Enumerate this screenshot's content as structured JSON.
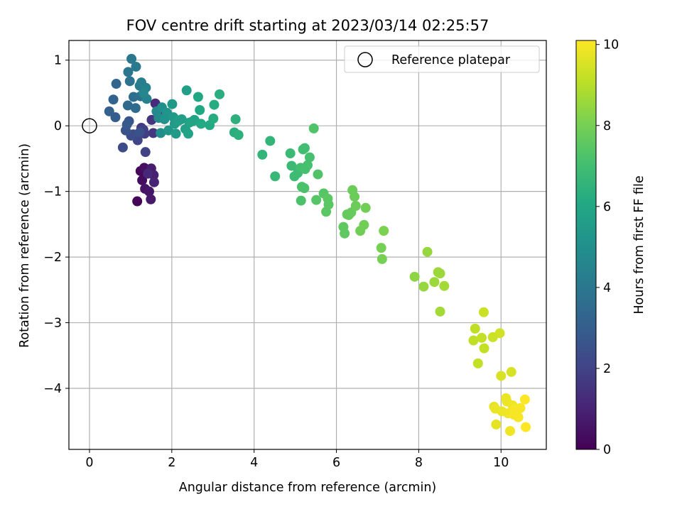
{
  "chart_data": {
    "type": "scatter",
    "title": "FOV centre drift starting at 2023/03/14 02:25:57",
    "xlabel": "Angular distance from reference (arcmin)",
    "ylabel": "Rotation from reference (arcmin)",
    "xlim": [
      -0.5,
      11.1
    ],
    "ylim": [
      -4.93,
      1.3
    ],
    "xticks": [
      0,
      2,
      4,
      6,
      8,
      10
    ],
    "yticks": [
      -4,
      -3,
      -2,
      -1,
      0,
      1
    ],
    "grid": true,
    "legend": {
      "placement": "top-right",
      "entries": [
        "Reference platepar"
      ]
    },
    "reference_point": {
      "x": 0,
      "y": 0,
      "label": "Reference platepar"
    },
    "colorbar": {
      "label": "Hours from first FF file",
      "min": 0,
      "max": 10.1,
      "ticks": [
        0,
        2,
        4,
        6,
        8,
        10
      ],
      "colormap": "viridis"
    },
    "points": [
      {
        "x": 1.16,
        "y": -1.15,
        "t": 0.1
      },
      {
        "x": 1.24,
        "y": -0.69,
        "t": 0.2
      },
      {
        "x": 1.28,
        "y": -0.83,
        "t": 0.3
      },
      {
        "x": 1.33,
        "y": -0.64,
        "t": 0.4
      },
      {
        "x": 1.35,
        "y": -0.96,
        "t": 0.5
      },
      {
        "x": 1.45,
        "y": -1.0,
        "t": 0.6
      },
      {
        "x": 1.49,
        "y": -1.12,
        "t": 0.7
      },
      {
        "x": 1.5,
        "y": -0.65,
        "t": 0.8
      },
      {
        "x": 1.56,
        "y": -0.75,
        "t": 0.9
      },
      {
        "x": 1.57,
        "y": -0.86,
        "t": 1.0
      },
      {
        "x": 1.42,
        "y": -0.73,
        "t": 1.1
      },
      {
        "x": 1.6,
        "y": 0.34,
        "t": 1.2
      },
      {
        "x": 1.66,
        "y": 0.21,
        "t": 1.3
      },
      {
        "x": 1.51,
        "y": 0.09,
        "t": 1.5
      },
      {
        "x": 1.55,
        "y": -0.11,
        "t": 1.6
      },
      {
        "x": 1.26,
        "y": -0.03,
        "t": 1.7
      },
      {
        "x": 1.34,
        "y": -0.12,
        "t": 1.8
      },
      {
        "x": 1.31,
        "y": -0.06,
        "t": 1.9
      },
      {
        "x": 1.36,
        "y": -0.4,
        "t": 2.0
      },
      {
        "x": 1.17,
        "y": -0.22,
        "t": 2.1
      },
      {
        "x": 1.06,
        "y": -0.13,
        "t": 2.2
      },
      {
        "x": 0.81,
        "y": -0.33,
        "t": 2.3
      },
      {
        "x": 1.01,
        "y": -0.15,
        "t": 2.4
      },
      {
        "x": 1.22,
        "y": -0.1,
        "t": 2.5
      },
      {
        "x": 0.88,
        "y": -0.07,
        "t": 2.6
      },
      {
        "x": 0.96,
        "y": 0.07,
        "t": 2.7
      },
      {
        "x": 0.91,
        "y": 0.02,
        "t": 2.8
      },
      {
        "x": 0.63,
        "y": 0.13,
        "t": 3.0
      },
      {
        "x": 0.48,
        "y": 0.22,
        "t": 3.1
      },
      {
        "x": 0.58,
        "y": 0.4,
        "t": 3.2
      },
      {
        "x": 0.65,
        "y": 0.64,
        "t": 3.3
      },
      {
        "x": 0.93,
        "y": 0.31,
        "t": 3.4
      },
      {
        "x": 1.12,
        "y": 0.27,
        "t": 3.5
      },
      {
        "x": 1.07,
        "y": 0.44,
        "t": 3.6
      },
      {
        "x": 1.24,
        "y": 0.45,
        "t": 3.7
      },
      {
        "x": 0.98,
        "y": 0.68,
        "t": 3.8
      },
      {
        "x": 0.94,
        "y": 0.82,
        "t": 3.9
      },
      {
        "x": 1.02,
        "y": 1.02,
        "t": 4.0
      },
      {
        "x": 1.13,
        "y": 0.9,
        "t": 4.1
      },
      {
        "x": 1.22,
        "y": 0.61,
        "t": 4.2
      },
      {
        "x": 1.26,
        "y": 0.66,
        "t": 4.3
      },
      {
        "x": 1.37,
        "y": 0.58,
        "t": 4.4
      },
      {
        "x": 1.39,
        "y": 0.41,
        "t": 4.5
      },
      {
        "x": 1.31,
        "y": 0.5,
        "t": 4.6
      },
      {
        "x": 1.63,
        "y": 0.22,
        "t": 4.7
      },
      {
        "x": 1.68,
        "y": 0.12,
        "t": 4.8
      },
      {
        "x": 1.73,
        "y": -0.11,
        "t": 4.9
      },
      {
        "x": 1.76,
        "y": 0.28,
        "t": 5.0
      },
      {
        "x": 1.82,
        "y": 0.1,
        "t": 5.1
      },
      {
        "x": 1.88,
        "y": 0.2,
        "t": 5.2
      },
      {
        "x": 1.92,
        "y": -0.07,
        "t": 5.3
      },
      {
        "x": 2.01,
        "y": 0.33,
        "t": 5.4
      },
      {
        "x": 2.04,
        "y": 0.13,
        "t": 5.4
      },
      {
        "x": 2.07,
        "y": 0.03,
        "t": 5.5
      },
      {
        "x": 2.1,
        "y": -0.12,
        "t": 5.5
      },
      {
        "x": 2.17,
        "y": 0.08,
        "t": 5.6
      },
      {
        "x": 2.24,
        "y": 0.1,
        "t": 5.6
      },
      {
        "x": 2.33,
        "y": -0.05,
        "t": 5.7
      },
      {
        "x": 2.36,
        "y": 0.54,
        "t": 5.7
      },
      {
        "x": 2.4,
        "y": -0.12,
        "t": 5.8
      },
      {
        "x": 2.43,
        "y": 0.05,
        "t": 5.8
      },
      {
        "x": 2.51,
        "y": 0.07,
        "t": 5.9
      },
      {
        "x": 2.55,
        "y": 0.09,
        "t": 5.9
      },
      {
        "x": 2.64,
        "y": 0.44,
        "t": 6.0
      },
      {
        "x": 2.68,
        "y": 0.24,
        "t": 6.0
      },
      {
        "x": 2.71,
        "y": 0.03,
        "t": 6.1
      },
      {
        "x": 2.92,
        "y": 0.01,
        "t": 6.1
      },
      {
        "x": 3.03,
        "y": 0.32,
        "t": 6.2
      },
      {
        "x": 3.01,
        "y": 0.11,
        "t": 6.2
      },
      {
        "x": 3.16,
        "y": 0.48,
        "t": 6.3
      },
      {
        "x": 3.52,
        "y": -0.1,
        "t": 6.3
      },
      {
        "x": 3.55,
        "y": 0.1,
        "t": 6.4
      },
      {
        "x": 3.62,
        "y": -0.14,
        "t": 6.4
      },
      {
        "x": 4.2,
        "y": -0.44,
        "t": 6.6
      },
      {
        "x": 4.39,
        "y": -0.23,
        "t": 6.6
      },
      {
        "x": 4.51,
        "y": -0.77,
        "t": 6.7
      },
      {
        "x": 4.88,
        "y": -0.42,
        "t": 6.8
      },
      {
        "x": 4.91,
        "y": -0.61,
        "t": 6.8
      },
      {
        "x": 4.98,
        "y": -0.77,
        "t": 6.9
      },
      {
        "x": 5.06,
        "y": -0.72,
        "t": 6.9
      },
      {
        "x": 5.13,
        "y": -0.64,
        "t": 7.0
      },
      {
        "x": 5.19,
        "y": -0.36,
        "t": 7.0
      },
      {
        "x": 5.23,
        "y": -0.34,
        "t": 7.0
      },
      {
        "x": 5.24,
        "y": -0.66,
        "t": 7.1
      },
      {
        "x": 5.3,
        "y": -0.6,
        "t": 7.1
      },
      {
        "x": 5.35,
        "y": -0.48,
        "t": 7.1
      },
      {
        "x": 5.16,
        "y": -0.93,
        "t": 7.2
      },
      {
        "x": 5.22,
        "y": -0.95,
        "t": 7.2
      },
      {
        "x": 5.14,
        "y": -1.14,
        "t": 7.2
      },
      {
        "x": 5.45,
        "y": -0.04,
        "t": 7.3
      },
      {
        "x": 5.55,
        "y": -0.74,
        "t": 7.3
      },
      {
        "x": 5.51,
        "y": -1.13,
        "t": 7.4
      },
      {
        "x": 5.69,
        "y": -1.03,
        "t": 7.4
      },
      {
        "x": 5.79,
        "y": -1.11,
        "t": 7.5
      },
      {
        "x": 5.81,
        "y": -1.2,
        "t": 7.5
      },
      {
        "x": 5.75,
        "y": -1.31,
        "t": 7.5
      },
      {
        "x": 6.17,
        "y": -1.54,
        "t": 7.6
      },
      {
        "x": 6.2,
        "y": -1.64,
        "t": 7.6
      },
      {
        "x": 6.26,
        "y": -1.35,
        "t": 7.7
      },
      {
        "x": 6.36,
        "y": -1.32,
        "t": 7.7
      },
      {
        "x": 6.3,
        "y": -1.36,
        "t": 7.7
      },
      {
        "x": 6.39,
        "y": -0.98,
        "t": 7.8
      },
      {
        "x": 6.44,
        "y": -1.08,
        "t": 7.8
      },
      {
        "x": 6.47,
        "y": -1.22,
        "t": 7.8
      },
      {
        "x": 6.58,
        "y": -1.6,
        "t": 7.9
      },
      {
        "x": 6.67,
        "y": -1.51,
        "t": 7.9
      },
      {
        "x": 6.71,
        "y": -1.25,
        "t": 7.9
      },
      {
        "x": 7.09,
        "y": -1.86,
        "t": 8.0
      },
      {
        "x": 7.11,
        "y": -2.03,
        "t": 8.0
      },
      {
        "x": 7.15,
        "y": -1.6,
        "t": 8.1
      },
      {
        "x": 7.9,
        "y": -2.3,
        "t": 8.4
      },
      {
        "x": 8.12,
        "y": -2.45,
        "t": 8.5
      },
      {
        "x": 8.21,
        "y": -1.92,
        "t": 8.5
      },
      {
        "x": 8.38,
        "y": -2.38,
        "t": 8.6
      },
      {
        "x": 8.47,
        "y": -2.23,
        "t": 8.6
      },
      {
        "x": 8.52,
        "y": -2.25,
        "t": 8.6
      },
      {
        "x": 8.62,
        "y": -2.44,
        "t": 8.7
      },
      {
        "x": 8.52,
        "y": -2.83,
        "t": 8.7
      },
      {
        "x": 9.33,
        "y": -3.27,
        "t": 9.1
      },
      {
        "x": 9.37,
        "y": -3.09,
        "t": 9.1
      },
      {
        "x": 9.44,
        "y": -3.62,
        "t": 9.2
      },
      {
        "x": 9.53,
        "y": -3.23,
        "t": 9.2
      },
      {
        "x": 9.59,
        "y": -3.39,
        "t": 9.2
      },
      {
        "x": 9.58,
        "y": -2.84,
        "t": 9.3
      },
      {
        "x": 9.8,
        "y": -3.22,
        "t": 9.3
      },
      {
        "x": 9.97,
        "y": -3.16,
        "t": 9.4
      },
      {
        "x": 10.0,
        "y": -3.81,
        "t": 9.5
      },
      {
        "x": 10.25,
        "y": -3.75,
        "t": 9.5
      },
      {
        "x": 9.83,
        "y": -4.28,
        "t": 9.7
      },
      {
        "x": 9.88,
        "y": -4.55,
        "t": 9.7
      },
      {
        "x": 9.86,
        "y": -4.31,
        "t": 9.8
      },
      {
        "x": 10.02,
        "y": -4.35,
        "t": 9.8
      },
      {
        "x": 10.12,
        "y": -4.15,
        "t": 9.8
      },
      {
        "x": 10.17,
        "y": -4.38,
        "t": 9.9
      },
      {
        "x": 10.22,
        "y": -4.65,
        "t": 9.9
      },
      {
        "x": 10.28,
        "y": -4.26,
        "t": 9.9
      },
      {
        "x": 10.31,
        "y": -4.4,
        "t": 10.0
      },
      {
        "x": 10.42,
        "y": -4.44,
        "t": 10.0
      },
      {
        "x": 10.47,
        "y": -4.3,
        "t": 10.0
      },
      {
        "x": 10.58,
        "y": -4.17,
        "t": 10.1
      },
      {
        "x": 10.6,
        "y": -4.59,
        "t": 10.1
      },
      {
        "x": 10.14,
        "y": -4.2,
        "t": 9.8
      },
      {
        "x": 10.34,
        "y": -4.31,
        "t": 10.0
      }
    ]
  }
}
